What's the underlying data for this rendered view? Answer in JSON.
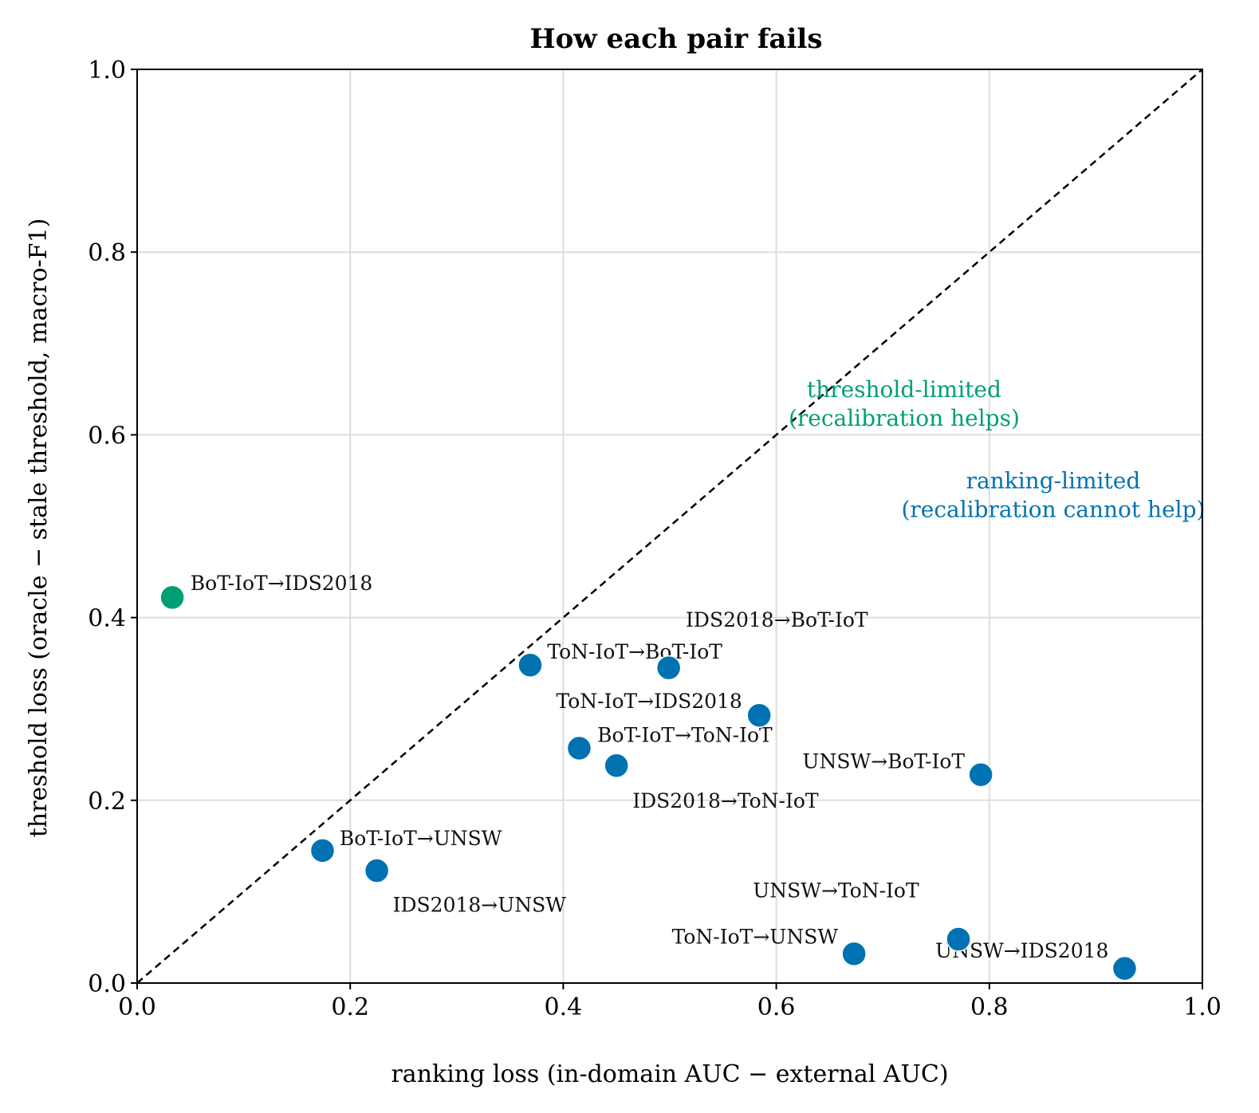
{
  "chart_data": {
    "type": "scatter",
    "title": "How each pair fails",
    "xlabel": "ranking loss  (in-domain AUC − external AUC)",
    "ylabel": "threshold loss  (oracle − stale threshold, macro-F1)",
    "xlim": [
      0.0,
      1.0
    ],
    "ylim": [
      0.0,
      1.0
    ],
    "xticks": [
      "0.0",
      "0.2",
      "0.4",
      "0.6",
      "0.8",
      "1.0"
    ],
    "yticks": [
      "0.0",
      "0.2",
      "0.4",
      "0.6",
      "0.8",
      "1.0"
    ],
    "grid": true,
    "reference_line": "y = x (dashed)",
    "colors": {
      "ranking_limited": "#0072B2",
      "threshold_limited": "#009E73"
    },
    "region_labels": [
      {
        "lines": [
          "threshold-limited",
          "(recalibration helps)"
        ],
        "color": "#009E73",
        "x": 0.72,
        "y": 0.61
      },
      {
        "lines": [
          "ranking-limited",
          "(recalibration cannot help)"
        ],
        "color": "#0072B2",
        "x": 0.86,
        "y": 0.51
      }
    ],
    "points": [
      {
        "label": "BoT-IoT→IDS2018",
        "x": 0.033,
        "y": 0.422,
        "group": "threshold_limited",
        "lx": 0.05,
        "ly": 0.43,
        "anchor": "start"
      },
      {
        "label": "ToN-IoT→BoT-IoT",
        "x": 0.369,
        "y": 0.348,
        "group": "ranking_limited",
        "lx": 0.385,
        "ly": 0.355,
        "anchor": "start"
      },
      {
        "label": "IDS2018→BoT-IoT",
        "x": 0.499,
        "y": 0.345,
        "group": "ranking_limited",
        "lx": 0.515,
        "ly": 0.39,
        "anchor": "start"
      },
      {
        "label": "ToN-IoT→IDS2018",
        "x": 0.584,
        "y": 0.293,
        "group": "ranking_limited",
        "lx": 0.568,
        "ly": 0.301,
        "anchor": "end"
      },
      {
        "label": "BoT-IoT→ToN-IoT",
        "x": 0.415,
        "y": 0.257,
        "group": "ranking_limited",
        "lx": 0.432,
        "ly": 0.264,
        "anchor": "start"
      },
      {
        "label": "IDS2018→ToN-IoT",
        "x": 0.45,
        "y": 0.238,
        "group": "ranking_limited",
        "lx": 0.465,
        "ly": 0.192,
        "anchor": "start"
      },
      {
        "label": "UNSW→BoT-IoT",
        "x": 0.792,
        "y": 0.228,
        "group": "ranking_limited",
        "lx": 0.777,
        "ly": 0.235,
        "anchor": "end"
      },
      {
        "label": "BoT-IoT→UNSW",
        "x": 0.174,
        "y": 0.145,
        "group": "ranking_limited",
        "lx": 0.19,
        "ly": 0.151,
        "anchor": "start"
      },
      {
        "label": "IDS2018→UNSW",
        "x": 0.225,
        "y": 0.123,
        "group": "ranking_limited",
        "lx": 0.24,
        "ly": 0.078,
        "anchor": "start"
      },
      {
        "label": "UNSW→ToN-IoT",
        "x": 0.771,
        "y": 0.048,
        "group": "ranking_limited",
        "lx": 0.578,
        "ly": 0.094,
        "anchor": "start"
      },
      {
        "label": "ToN-IoT→UNSW",
        "x": 0.673,
        "y": 0.032,
        "group": "ranking_limited",
        "lx": 0.658,
        "ly": 0.043,
        "anchor": "end"
      },
      {
        "label": "UNSW→IDS2018",
        "x": 0.927,
        "y": 0.016,
        "group": "ranking_limited",
        "lx": 0.912,
        "ly": 0.028,
        "anchor": "end"
      }
    ]
  }
}
